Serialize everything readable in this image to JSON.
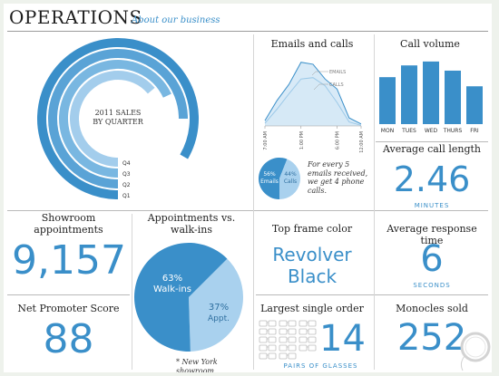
{
  "header": {
    "title": "OPERATIONS",
    "subtitle": "About our business"
  },
  "sales": {
    "title_line1": "2011 SALES",
    "title_line2": "BY QUARTER",
    "quarters": [
      "Q1",
      "Q2",
      "Q3",
      "Q4"
    ]
  },
  "emails_calls": {
    "title": "Emails and calls",
    "legend_emails": "EMAILS",
    "legend_calls": "CALLS",
    "x_ticks": [
      "7:00 AM",
      "1:00 PM",
      "6:00 PM",
      "12:00 AM"
    ]
  },
  "call_volume": {
    "title": "Call volume"
  },
  "ratio": {
    "emails_pct": "56%",
    "emails_label": "Emails",
    "calls_pct": "44%",
    "calls_label": "Calls",
    "note": "For every 5 emails received, we get 4 phone calls."
  },
  "avg_call": {
    "title": "Average call length",
    "value": "2.46",
    "unit": "MINUTES"
  },
  "showroom": {
    "title_line1": "Showroom",
    "title_line2": "appointments",
    "value": "9,157"
  },
  "appointments": {
    "title_line1": "Appointments vs.",
    "title_line2": "walk-ins",
    "walkins_pct": "63%",
    "walkins_label": "Walk-ins",
    "appt_pct": "37%",
    "appt_label": "Appt.",
    "footnote": "* New York showroom"
  },
  "frame": {
    "title": "Top frame color",
    "value_line1": "Revolver",
    "value_line2": "Black"
  },
  "response": {
    "title": "Average response time",
    "value": "6",
    "unit": "SECONDS"
  },
  "nps": {
    "title": "Net Promoter Score",
    "value": "88"
  },
  "order": {
    "title": "Largest single order",
    "value": "14",
    "unit": "PAIRS OF GLASSES"
  },
  "monocles": {
    "title": "Monocles sold",
    "value": "252"
  },
  "colors": {
    "accent": "#3a8fc9",
    "light": "#a9d1ee",
    "mid": "#6fb0dd"
  },
  "chart_data": [
    {
      "type": "pie",
      "variant": "radial-bar",
      "title": "2011 SALES BY QUARTER",
      "categories": [
        "Q1",
        "Q2",
        "Q3",
        "Q4"
      ],
      "values": [
        300,
        270,
        245,
        230
      ],
      "value_unit": "degrees of arc (estimated)"
    },
    {
      "type": "area",
      "title": "Emails and calls",
      "x": [
        "7:00 AM",
        "9:00 AM",
        "11:00 AM",
        "1:00 PM",
        "3:00 PM",
        "4:30 PM",
        "6:00 PM",
        "9:00 PM",
        "12:00 AM"
      ],
      "series": [
        {
          "name": "EMAILS",
          "values": [
            8,
            38,
            62,
            95,
            92,
            70,
            55,
            12,
            3
          ]
        },
        {
          "name": "CALLS",
          "values": [
            4,
            25,
            48,
            70,
            72,
            60,
            35,
            6,
            1
          ]
        }
      ]
    },
    {
      "type": "bar",
      "title": "Call volume",
      "categories": [
        "MON",
        "TUES",
        "WED",
        "THURS",
        "FRI"
      ],
      "values": [
        72,
        90,
        96,
        82,
        58
      ]
    },
    {
      "type": "pie",
      "title": "Emails vs. calls",
      "categories": [
        "Emails",
        "Calls"
      ],
      "values": [
        56,
        44
      ]
    },
    {
      "type": "pie",
      "title": "Appointments vs. walk-ins",
      "categories": [
        "Walk-ins",
        "Appt."
      ],
      "values": [
        63,
        37
      ]
    }
  ]
}
